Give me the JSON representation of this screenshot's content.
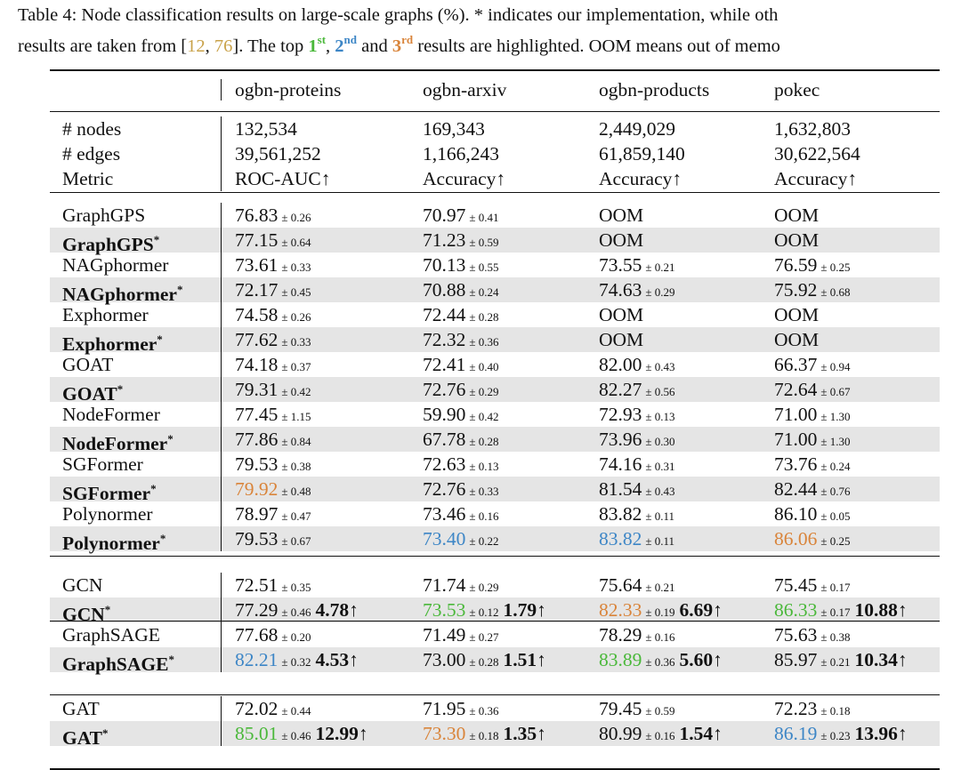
{
  "caption": {
    "line1": "Table 4: Node classification results on large-scale graphs (%). * indicates our implementation, while oth",
    "line2_pre": "results are taken from [",
    "ref_a": "12",
    "ref_sep": ", ",
    "ref_b": "76",
    "line2_mid": "]. The top ",
    "first": "1",
    "first_sup": "st",
    "comma": ", ",
    "second": "2",
    "second_sup": "nd",
    "and": " and ",
    "third": "3",
    "third_sup": "rd",
    "line2_post": " results are highlighted. OOM means out of memo"
  },
  "colors": {
    "first": "#4ab83a",
    "second": "#3d86c6",
    "third": "#d9843a",
    "shade": "#e5e5e5"
  },
  "header": [
    "",
    "ogbn-proteins",
    "ogbn-arxiv",
    "ogbn-products",
    "pokec"
  ],
  "stats": [
    [
      "# nodes",
      "132,534",
      "169,343",
      "2,449,029",
      "1,632,803"
    ],
    [
      "# edges",
      "39,561,252",
      "1,166,243",
      "61,859,140",
      "30,622,564"
    ],
    [
      "Metric",
      "ROC-AUC↑",
      "Accuracy↑",
      "Accuracy↑",
      "Accuracy↑"
    ]
  ],
  "groups": [
    [
      {
        "name": "GraphGPS",
        "star": false,
        "cells": [
          [
            "76.83",
            "± 0.26",
            "",
            ""
          ],
          [
            "70.97",
            "± 0.41",
            "",
            ""
          ],
          [
            "OOM",
            "",
            "",
            ""
          ],
          [
            "OOM",
            "",
            "",
            ""
          ]
        ]
      },
      {
        "name": "GraphGPS",
        "star": true,
        "cells": [
          [
            "77.15",
            "± 0.64",
            "",
            ""
          ],
          [
            "71.23",
            "± 0.59",
            "",
            ""
          ],
          [
            "OOM",
            "",
            "",
            ""
          ],
          [
            "OOM",
            "",
            "",
            ""
          ]
        ]
      },
      {
        "name": "NAGphormer",
        "star": false,
        "cells": [
          [
            "73.61",
            "± 0.33",
            "",
            ""
          ],
          [
            "70.13",
            "± 0.55",
            "",
            ""
          ],
          [
            "73.55",
            "± 0.21",
            "",
            ""
          ],
          [
            "76.59",
            "± 0.25",
            "",
            ""
          ]
        ]
      },
      {
        "name": "NAGphormer",
        "star": true,
        "cells": [
          [
            "72.17",
            "± 0.45",
            "",
            ""
          ],
          [
            "70.88",
            "± 0.24",
            "",
            ""
          ],
          [
            "74.63",
            "± 0.29",
            "",
            ""
          ],
          [
            "75.92",
            "± 0.68",
            "",
            ""
          ]
        ]
      },
      {
        "name": "Exphormer",
        "star": false,
        "cells": [
          [
            "74.58",
            "± 0.26",
            "",
            ""
          ],
          [
            "72.44",
            "± 0.28",
            "",
            ""
          ],
          [
            "OOM",
            "",
            "",
            ""
          ],
          [
            "OOM",
            "",
            "",
            ""
          ]
        ]
      },
      {
        "name": "Exphormer",
        "star": true,
        "cells": [
          [
            "77.62",
            "± 0.33",
            "",
            ""
          ],
          [
            "72.32",
            "± 0.36",
            "",
            ""
          ],
          [
            "OOM",
            "",
            "",
            ""
          ],
          [
            "OOM",
            "",
            "",
            ""
          ]
        ]
      },
      {
        "name": "GOAT",
        "star": false,
        "cells": [
          [
            "74.18",
            "± 0.37",
            "",
            ""
          ],
          [
            "72.41",
            "± 0.40",
            "",
            ""
          ],
          [
            "82.00",
            "± 0.43",
            "",
            ""
          ],
          [
            "66.37",
            "± 0.94",
            "",
            ""
          ]
        ]
      },
      {
        "name": "GOAT",
        "star": true,
        "cells": [
          [
            "79.31",
            "± 0.42",
            "",
            ""
          ],
          [
            "72.76",
            "± 0.29",
            "",
            ""
          ],
          [
            "82.27",
            "± 0.56",
            "",
            ""
          ],
          [
            "72.64",
            "± 0.67",
            "",
            ""
          ]
        ]
      },
      {
        "name": "NodeFormer",
        "star": false,
        "cells": [
          [
            "77.45",
            "± 1.15",
            "",
            ""
          ],
          [
            "59.90",
            "± 0.42",
            "",
            ""
          ],
          [
            "72.93",
            "± 0.13",
            "",
            ""
          ],
          [
            "71.00",
            "± 1.30",
            "",
            ""
          ]
        ]
      },
      {
        "name": "NodeFormer",
        "star": true,
        "cells": [
          [
            "77.86",
            "± 0.84",
            "",
            ""
          ],
          [
            "67.78",
            "± 0.28",
            "",
            ""
          ],
          [
            "73.96",
            "± 0.30",
            "",
            ""
          ],
          [
            "71.00",
            "± 1.30",
            "",
            ""
          ]
        ]
      },
      {
        "name": "SGFormer",
        "star": false,
        "cells": [
          [
            "79.53",
            "± 0.38",
            "",
            ""
          ],
          [
            "72.63",
            "± 0.13",
            "",
            ""
          ],
          [
            "74.16",
            "± 0.31",
            "",
            ""
          ],
          [
            "73.76",
            "± 0.24",
            "",
            ""
          ]
        ]
      },
      {
        "name": "SGFormer",
        "star": true,
        "cells": [
          [
            "79.92",
            "± 0.48",
            "",
            "o"
          ],
          [
            "72.76",
            "± 0.33",
            "",
            ""
          ],
          [
            "81.54",
            "± 0.43",
            "",
            ""
          ],
          [
            "82.44",
            "± 0.76",
            "",
            ""
          ]
        ]
      },
      {
        "name": "Polynormer",
        "star": false,
        "cells": [
          [
            "78.97",
            "± 0.47",
            "",
            ""
          ],
          [
            "73.46",
            "± 0.16",
            "",
            ""
          ],
          [
            "83.82",
            "± 0.11",
            "",
            ""
          ],
          [
            "86.10",
            "± 0.05",
            "",
            ""
          ]
        ]
      },
      {
        "name": "Polynormer",
        "star": true,
        "cells": [
          [
            "79.53",
            "± 0.67",
            "",
            ""
          ],
          [
            "73.40",
            "± 0.22",
            "",
            "b"
          ],
          [
            "83.82",
            "± 0.11",
            "",
            "b"
          ],
          [
            "86.06",
            "± 0.25",
            "",
            "o"
          ]
        ]
      }
    ],
    [
      {
        "name": "GCN",
        "star": false,
        "cells": [
          [
            "72.51",
            "± 0.35",
            "",
            ""
          ],
          [
            "71.74",
            "± 0.29",
            "",
            ""
          ],
          [
            "75.64",
            "± 0.21",
            "",
            ""
          ],
          [
            "75.45",
            "± 0.17",
            "",
            ""
          ]
        ]
      },
      {
        "name": "GCN",
        "star": true,
        "cells": [
          [
            "77.29",
            "± 0.46",
            "4.78↑",
            ""
          ],
          [
            "73.53",
            "± 0.12",
            "1.79↑",
            "g"
          ],
          [
            "82.33",
            "± 0.19",
            "6.69↑",
            "o"
          ],
          [
            "86.33",
            "± 0.17",
            "10.88↑",
            "g"
          ]
        ]
      }
    ],
    [
      {
        "name": "GraphSAGE",
        "star": false,
        "cells": [
          [
            "77.68",
            "± 0.20",
            "",
            ""
          ],
          [
            "71.49",
            "± 0.27",
            "",
            ""
          ],
          [
            "78.29",
            "± 0.16",
            "",
            ""
          ],
          [
            "75.63",
            "± 0.38",
            "",
            ""
          ]
        ]
      },
      {
        "name": "GraphSAGE",
        "star": true,
        "cells": [
          [
            "82.21",
            "± 0.32",
            "4.53↑",
            "b"
          ],
          [
            "73.00",
            "± 0.28",
            "1.51↑",
            ""
          ],
          [
            "83.89",
            "± 0.36",
            "5.60↑",
            "g"
          ],
          [
            "85.97",
            "± 0.21",
            "10.34↑",
            ""
          ]
        ]
      }
    ],
    [
      {
        "name": "GAT",
        "star": false,
        "cells": [
          [
            "72.02",
            "± 0.44",
            "",
            ""
          ],
          [
            "71.95",
            "± 0.36",
            "",
            ""
          ],
          [
            "79.45",
            "± 0.59",
            "",
            ""
          ],
          [
            "72.23",
            "± 0.18",
            "",
            ""
          ]
        ]
      },
      {
        "name": "GAT",
        "star": true,
        "cells": [
          [
            "85.01",
            "± 0.46",
            "12.99↑",
            "g"
          ],
          [
            "73.30",
            "± 0.18",
            "1.35↑",
            "o"
          ],
          [
            "80.99",
            "± 0.16",
            "1.54↑",
            ""
          ],
          [
            "86.19",
            "± 0.23",
            "13.96↑",
            "b"
          ]
        ]
      }
    ]
  ]
}
